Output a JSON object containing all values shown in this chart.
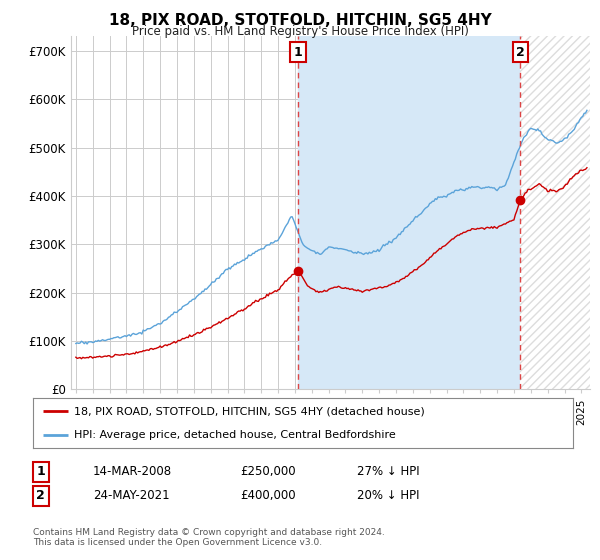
{
  "title": "18, PIX ROAD, STOTFOLD, HITCHIN, SG5 4HY",
  "subtitle": "Price paid vs. HM Land Registry's House Price Index (HPI)",
  "ylabel_ticks": [
    "£0",
    "£100K",
    "£200K",
    "£300K",
    "£400K",
    "£500K",
    "£600K",
    "£700K"
  ],
  "ytick_values": [
    0,
    100000,
    200000,
    300000,
    400000,
    500000,
    600000,
    700000
  ],
  "ylim": [
    0,
    730000
  ],
  "xlim_start": 1994.7,
  "xlim_end": 2025.5,
  "purchase1_date": 2008.2,
  "purchase1_value": 250000,
  "purchase1_label": "1",
  "purchase2_date": 2021.38,
  "purchase2_value": 400000,
  "purchase2_label": "2",
  "hpi_color": "#5ba3d9",
  "hpi_fill_color": "#d6e8f7",
  "price_color": "#cc0000",
  "vline_color": "#dd4444",
  "legend_house_label": "18, PIX ROAD, STOTFOLD, HITCHIN, SG5 4HY (detached house)",
  "legend_hpi_label": "HPI: Average price, detached house, Central Bedfordshire",
  "table_row1": [
    "1",
    "14-MAR-2008",
    "£250,000",
    "27% ↓ HPI"
  ],
  "table_row2": [
    "2",
    "24-MAY-2021",
    "£400,000",
    "20% ↓ HPI"
  ],
  "footer": "Contains HM Land Registry data © Crown copyright and database right 2024.\nThis data is licensed under the Open Government Licence v3.0.",
  "background_color": "#ffffff",
  "plot_bg_color": "#ffffff",
  "grid_color": "#cccccc",
  "hatch_color": "#dddddd"
}
